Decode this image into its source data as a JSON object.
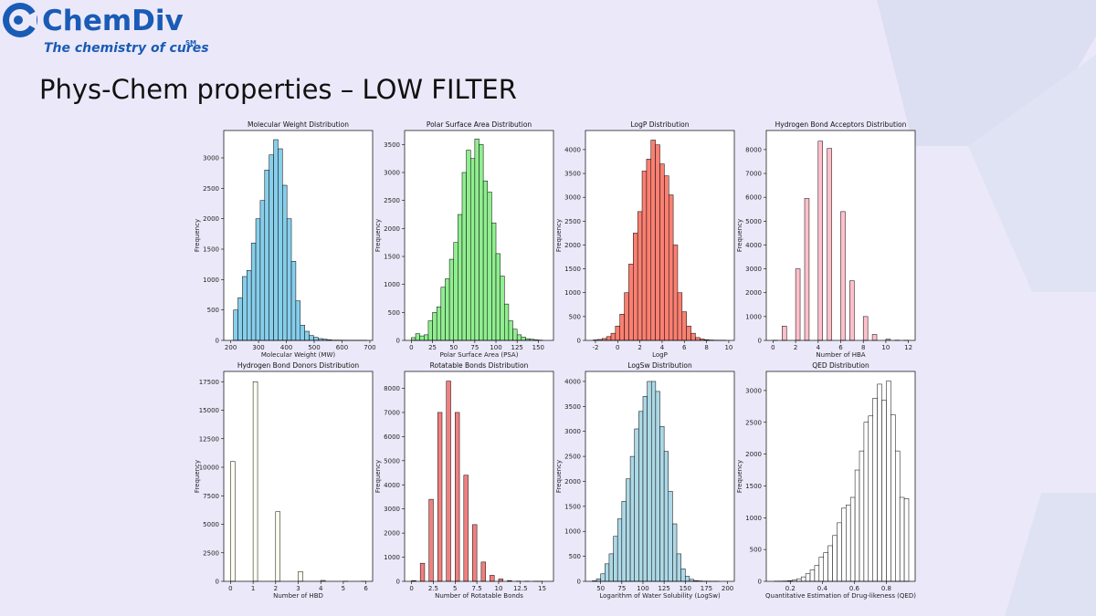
{
  "header": {
    "logo": "ChemDiv",
    "tagline": "The chemistry of cures",
    "tagline_mark": "SM",
    "title": "Phys-Chem properties – LOW FILTER"
  },
  "chart_data": [
    {
      "type": "histogram",
      "title": "Molecular Weight Distribution",
      "xlabel": "Molecular Weight (MW)",
      "ylabel": "Frequency",
      "color": "#87ceeb",
      "bins": [
        210,
        226,
        242,
        258,
        274,
        290,
        306,
        322,
        338,
        354,
        370,
        386,
        402,
        418,
        434,
        450,
        466,
        482,
        498,
        514,
        530,
        546,
        562,
        578,
        594,
        610,
        626,
        642,
        658,
        674,
        690
      ],
      "values": [
        500,
        700,
        1050,
        1150,
        1600,
        2000,
        2300,
        2800,
        3050,
        3300,
        3150,
        2550,
        2000,
        1300,
        650,
        250,
        150,
        80,
        50,
        30,
        20,
        10,
        5,
        5,
        3,
        2,
        1,
        1,
        1,
        1
      ],
      "xlim": [
        175,
        710
      ],
      "xticks": [
        200,
        300,
        400,
        500,
        600,
        700
      ],
      "ylim": [
        0,
        3450
      ],
      "yticks": [
        0,
        500,
        1000,
        1500,
        2000,
        2500,
        3000
      ]
    },
    {
      "type": "histogram",
      "title": "Polar Surface Area Distribution",
      "xlabel": "Polar Surface Area (PSA)",
      "ylabel": "Frequency",
      "color": "#90ee90",
      "bins": [
        0,
        5,
        10,
        15,
        20,
        25,
        30,
        35,
        40,
        45,
        50,
        55,
        60,
        65,
        70,
        75,
        80,
        85,
        90,
        95,
        100,
        105,
        110,
        115,
        120,
        125,
        130,
        135,
        140,
        145,
        150,
        155
      ],
      "values": [
        50,
        120,
        80,
        100,
        350,
        500,
        600,
        950,
        1100,
        1450,
        1750,
        2250,
        3000,
        3400,
        3250,
        3600,
        3500,
        2850,
        2650,
        2100,
        1550,
        1150,
        650,
        350,
        200,
        100,
        60,
        30,
        20,
        10,
        5
      ],
      "xlim": [
        -8,
        168
      ],
      "xticks": [
        0,
        25,
        50,
        75,
        100,
        125,
        150
      ],
      "ylim": [
        0,
        3750
      ],
      "yticks": [
        0,
        500,
        1000,
        1500,
        2000,
        2500,
        3000,
        3500
      ]
    },
    {
      "type": "histogram",
      "title": "LogP Distribution",
      "xlabel": "LogP",
      "ylabel": "Frequency",
      "color": "#fa8072",
      "bins": [
        -2.2,
        -1.8,
        -1.4,
        -1,
        -0.6,
        -0.2,
        0.2,
        0.6,
        1,
        1.4,
        1.8,
        2.2,
        2.6,
        3,
        3.4,
        3.8,
        4.2,
        4.6,
        5,
        5.4,
        5.8,
        6.2,
        6.6,
        7,
        7.4,
        7.8,
        8.2,
        8.6,
        9,
        9.4,
        9.8
      ],
      "values": [
        10,
        20,
        40,
        80,
        150,
        300,
        550,
        1000,
        1600,
        2250,
        2700,
        3550,
        3800,
        4200,
        4100,
        3700,
        3450,
        3050,
        2000,
        1000,
        600,
        300,
        150,
        60,
        30,
        15,
        8,
        5,
        3,
        2
      ],
      "xlim": [
        -2.9,
        10.5
      ],
      "xticks": [
        -2,
        0,
        2,
        4,
        6,
        8,
        10
      ],
      "ylim": [
        0,
        4400
      ],
      "yticks": [
        0,
        500,
        1000,
        1500,
        2000,
        2500,
        3000,
        3500,
        4000
      ]
    },
    {
      "type": "histogram",
      "title": "Hydrogen Bond Acceptors Distribution",
      "xlabel": "Number of HBA",
      "ylabel": "Frequency",
      "color": "#ffc0cb",
      "bins": [
        0,
        0.4,
        0.8,
        1.2,
        1.6,
        2,
        2.4,
        2.8,
        3.2,
        3.6,
        4,
        4.4,
        4.8,
        5.2,
        5.6,
        6,
        6.4,
        6.8,
        7.2,
        7.6,
        8,
        8.4,
        8.8,
        9.2,
        9.6,
        10,
        10.4,
        10.8,
        11.2,
        11.6,
        12
      ],
      "values": [
        5,
        0,
        600,
        0,
        0,
        3000,
        0,
        5950,
        0,
        0,
        8350,
        0,
        8050,
        0,
        0,
        5400,
        0,
        2500,
        0,
        0,
        1000,
        0,
        250,
        0,
        0,
        50,
        0,
        10,
        0,
        3
      ],
      "xlim": [
        -0.6,
        12.6
      ],
      "xticks": [
        0,
        2,
        4,
        6,
        8,
        10,
        12
      ],
      "ylim": [
        0,
        8800
      ],
      "yticks": [
        0,
        1000,
        2000,
        3000,
        4000,
        5000,
        6000,
        7000,
        8000
      ]
    },
    {
      "type": "histogram",
      "title": "Hydrogen Bond Donors Distribution",
      "xlabel": "Number of HBD",
      "ylabel": "Frequency",
      "color": "#fffff0",
      "bins": [
        0,
        0.2,
        0.4,
        0.6,
        0.8,
        1,
        1.2,
        1.4,
        1.6,
        1.8,
        2,
        2.2,
        2.4,
        2.6,
        2.8,
        3,
        3.2,
        3.4,
        3.6,
        3.8,
        4,
        4.2,
        4.4,
        4.6,
        4.8,
        5,
        5.2,
        5.4,
        5.6,
        5.8,
        6
      ],
      "values": [
        10500,
        0,
        0,
        0,
        0,
        17500,
        0,
        0,
        0,
        0,
        6100,
        0,
        0,
        0,
        0,
        850,
        0,
        0,
        0,
        0,
        80,
        0,
        0,
        0,
        0,
        10,
        0,
        0,
        0,
        2
      ],
      "xlim": [
        -0.3,
        6.3
      ],
      "xticks": [
        0,
        1,
        2,
        3,
        4,
        5,
        6
      ],
      "ylim": [
        0,
        18400
      ],
      "yticks": [
        0,
        2500,
        5000,
        7500,
        10000,
        12500,
        15000,
        17500
      ]
    },
    {
      "type": "histogram",
      "title": "Rotatable Bonds Distribution",
      "xlabel": "Number of Rotatable Bonds",
      "ylabel": "Frequency",
      "color": "#f08080",
      "bins": [
        0,
        0.5,
        1,
        1.5,
        2,
        2.5,
        3,
        3.5,
        4,
        4.5,
        5,
        5.5,
        6,
        6.5,
        7,
        7.5,
        8,
        8.5,
        9,
        9.5,
        10,
        10.5,
        11,
        11.5,
        12,
        12.5,
        13,
        13.5,
        14,
        14.5,
        15
      ],
      "values": [
        30,
        0,
        750,
        0,
        3400,
        0,
        7000,
        0,
        8300,
        0,
        7000,
        0,
        4400,
        0,
        2350,
        0,
        800,
        0,
        250,
        0,
        100,
        0,
        30,
        0,
        10,
        0,
        5,
        0,
        2,
        1
      ],
      "xlim": [
        -0.8,
        16.3
      ],
      "xticks": [
        0,
        2.5,
        5,
        7.5,
        10,
        12.5,
        15
      ],
      "ylim": [
        0,
        8700
      ],
      "yticks": [
        0,
        1000,
        2000,
        3000,
        4000,
        5000,
        6000,
        7000,
        8000
      ]
    },
    {
      "type": "histogram",
      "title": "LogSw Distribution",
      "xlabel": "Logarithm of Water Solubility (LogSw)",
      "ylabel": "Frequency",
      "color": "#add8e6",
      "bins": [
        40,
        45,
        50,
        55,
        60,
        65,
        70,
        75,
        80,
        85,
        90,
        95,
        100,
        105,
        110,
        115,
        120,
        125,
        130,
        135,
        140,
        145,
        150,
        155,
        160,
        165,
        170,
        175,
        180,
        185,
        190
      ],
      "values": [
        10,
        50,
        150,
        350,
        550,
        900,
        1250,
        1600,
        2050,
        2500,
        3050,
        3400,
        3700,
        4000,
        4000,
        3800,
        3100,
        2600,
        1800,
        1150,
        550,
        250,
        100,
        40,
        15,
        8,
        4,
        2,
        1,
        1
      ],
      "xlim": [
        32,
        208
      ],
      "xticks": [
        50,
        75,
        100,
        125,
        150,
        175,
        200
      ],
      "ylim": [
        0,
        4200
      ],
      "yticks": [
        0,
        500,
        1000,
        1500,
        2000,
        2500,
        3000,
        3500,
        4000
      ]
    },
    {
      "type": "histogram",
      "title": "QED Distribution",
      "xlabel": "Quantitative Estimation of Drug-likeness (QED)",
      "ylabel": "Frequency",
      "color": "#ffffff",
      "bins": [
        0.1,
        0.128,
        0.156,
        0.184,
        0.212,
        0.24,
        0.268,
        0.296,
        0.324,
        0.352,
        0.38,
        0.408,
        0.436,
        0.464,
        0.492,
        0.52,
        0.548,
        0.576,
        0.604,
        0.632,
        0.66,
        0.688,
        0.716,
        0.744,
        0.772,
        0.8,
        0.828,
        0.856,
        0.884,
        0.912,
        0.94
      ],
      "values": [
        2,
        3,
        5,
        10,
        20,
        40,
        70,
        120,
        180,
        250,
        380,
        450,
        560,
        720,
        920,
        1150,
        1200,
        1320,
        1750,
        2050,
        2500,
        2600,
        2880,
        3100,
        2850,
        3150,
        2620,
        2050,
        1320,
        1300
      ],
      "xlim": [
        0.05,
        0.98
      ],
      "xticks": [
        0.2,
        0.4,
        0.6,
        0.8
      ],
      "ylim": [
        0,
        3300
      ],
      "yticks": [
        0,
        500,
        1000,
        1500,
        2000,
        2500,
        3000
      ]
    }
  ]
}
